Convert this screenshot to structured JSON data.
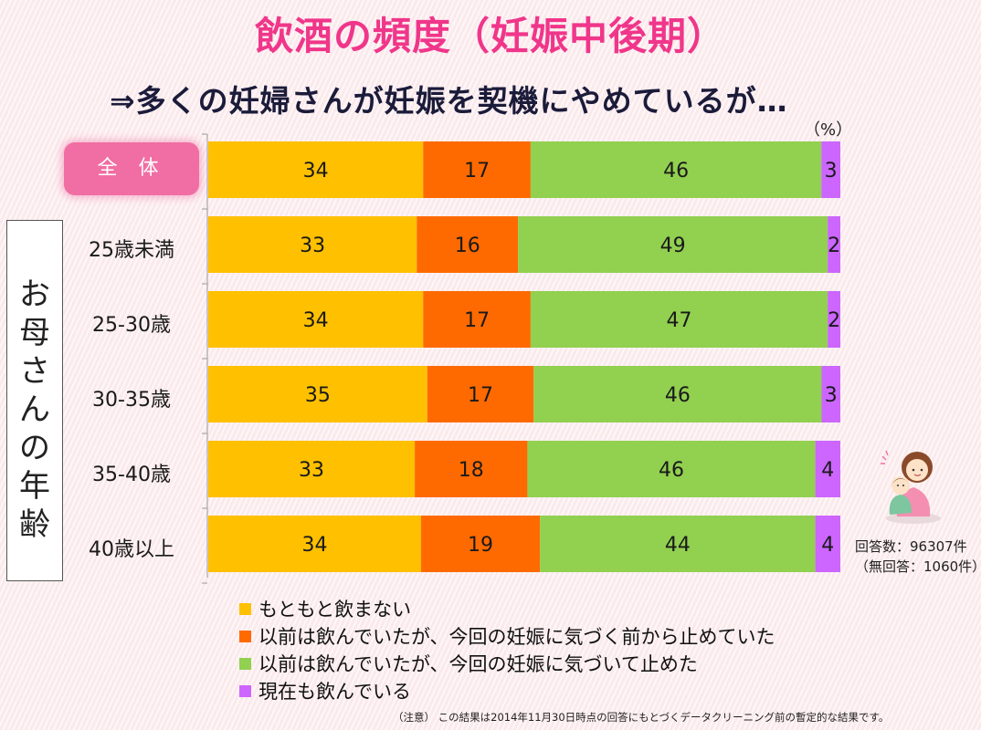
{
  "title": "飲酒の頻度（妊娠中後期）",
  "subtitle": "⇒多くの妊婦さんが妊娠を契機にやめているが…",
  "unit": "（%）",
  "group_label": "お母さんの年齢",
  "responses": "回答数：96307件",
  "no_responses": "（無回答：1060件）",
  "note": "（注意） この結果は2014年11月30日時点の回答にもとづくデータクリーニング前の暫定的な結果です。",
  "chart_data": {
    "type": "bar",
    "orientation": "horizontal",
    "stacked": true,
    "title": "飲酒の頻度（妊娠中後期）",
    "categories": [
      "全 体",
      "25歳未満",
      "25-30歳",
      "30-35歳",
      "35-40歳",
      "40歳以上"
    ],
    "series": [
      {
        "name": "もともと飲まない",
        "color": "#ffc000",
        "values": [
          34,
          33,
          34,
          35,
          33,
          34
        ]
      },
      {
        "name": "以前は飲んでいたが、今回の妊娠に気づく前から止めていた",
        "color": "#ff6a00",
        "values": [
          17,
          16,
          17,
          17,
          18,
          19
        ]
      },
      {
        "name": "以前は飲んでいたが、今回の妊娠に気づいて止めた",
        "color": "#92d050",
        "values": [
          46,
          49,
          47,
          46,
          46,
          44
        ]
      },
      {
        "name": "現在も飲んでいる",
        "color": "#cc66ff",
        "values": [
          3,
          2,
          2,
          3,
          4,
          4
        ]
      }
    ],
    "xlim": [
      0,
      100
    ],
    "ylabel": "お母さんの年齢",
    "legend_position": "bottom"
  }
}
